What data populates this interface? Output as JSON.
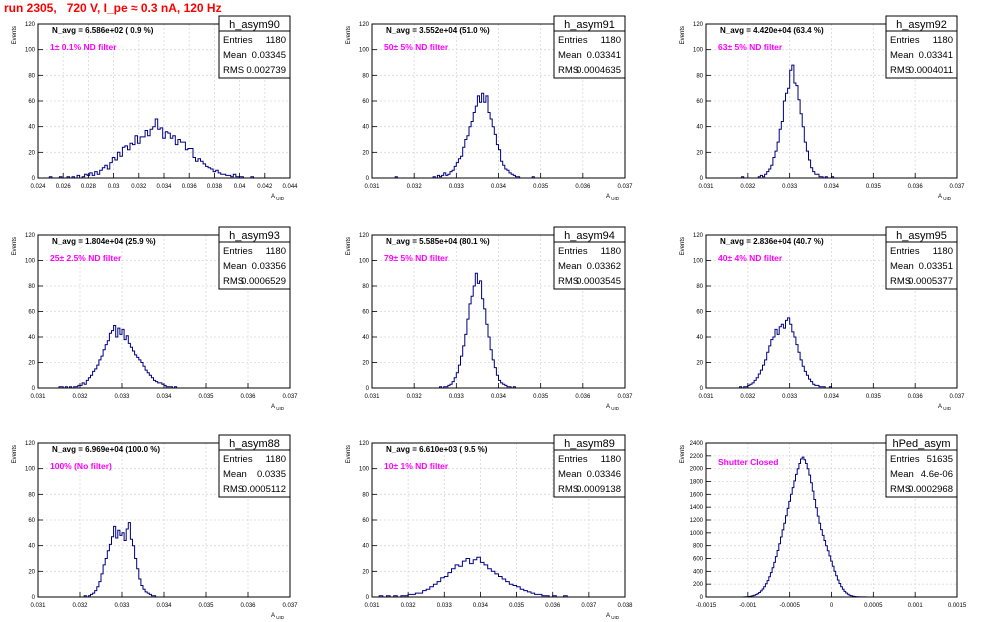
{
  "page": {
    "run_title": "run 2305,   720 V, I_pe ≈ 0.3 nA, 120 Hz"
  },
  "colors": {
    "annotation": "#ff00ff",
    "title": "#ff0000",
    "hist": "#000080",
    "grid": "#d9d9d9"
  },
  "chart_data": [
    {
      "type": "histogram",
      "name": "h_asym90",
      "navg": "N_avg = 6.586e+02 ( 0.9 %)",
      "filter": "1± 0.1% ND filter",
      "stats": {
        "entries": "1180",
        "mean": "0.03345",
        "rms": "0.002739"
      },
      "ylabel": "Events",
      "xlabel": "A_{UID}",
      "xlim": [
        0.024,
        0.044
      ],
      "ylim": [
        0,
        120
      ],
      "xticks": [
        "0.024",
        "0.026",
        "0.028",
        "0.03",
        "0.032",
        "0.034",
        "0.036",
        "0.038",
        "0.04",
        "0.042",
        "0.044"
      ],
      "yticks": [
        "0",
        "20",
        "40",
        "60",
        "80",
        "100",
        "120"
      ],
      "bin_start": 0.0245,
      "bin_width": 0.0002,
      "counts": [
        0,
        0,
        1,
        0,
        0,
        0,
        1,
        0,
        0,
        1,
        0,
        1,
        0,
        2,
        0,
        1,
        3,
        2,
        4,
        2,
        5,
        3,
        6,
        8,
        10,
        7,
        12,
        16,
        14,
        20,
        17,
        24,
        25,
        22,
        27,
        26,
        33,
        27,
        32,
        32,
        37,
        33,
        38,
        40,
        46,
        38,
        39,
        31,
        36,
        35,
        31,
        33,
        26,
        30,
        28,
        28,
        22,
        23,
        23,
        16,
        13,
        15,
        13,
        11,
        9,
        8,
        7,
        5,
        6,
        4,
        3,
        3,
        2,
        2,
        1,
        3,
        1,
        1,
        1,
        0,
        0,
        0,
        1,
        0,
        0,
        0,
        0,
        0,
        0,
        0
      ]
    },
    {
      "type": "histogram",
      "name": "h_asym91",
      "navg": "N_avg = 3.552e+04 (51.0 %)",
      "filter": "50± 5% ND filter",
      "stats": {
        "entries": "1180",
        "mean": "0.03341",
        "rms": "0.0004635"
      },
      "ylabel": "Events",
      "xlabel": "A_{UID}",
      "xlim": [
        0.031,
        0.037
      ],
      "ylim": [
        0,
        120
      ],
      "xticks": [
        "0.031",
        "0.032",
        "0.033",
        "0.034",
        "0.035",
        "0.036",
        "0.037"
      ],
      "yticks": [
        "0",
        "20",
        "40",
        "60",
        "80",
        "100",
        "120"
      ],
      "bin_start": 0.03155,
      "bin_width": 5e-05,
      "counts": [
        1,
        0,
        0,
        0,
        0,
        0,
        0,
        0,
        0,
        0,
        0,
        0,
        0,
        0,
        0,
        0,
        0,
        0,
        1,
        0,
        2,
        1,
        2,
        4,
        2,
        3,
        5,
        6,
        9,
        12,
        15,
        17,
        24,
        30,
        33,
        40,
        44,
        51,
        56,
        64,
        59,
        66,
        59,
        64,
        51,
        46,
        40,
        34,
        26,
        22,
        13,
        10,
        7,
        6,
        4,
        3,
        2,
        1,
        1,
        0,
        0,
        0,
        0,
        0,
        0,
        1,
        0,
        0,
        0,
        0
      ]
    },
    {
      "type": "histogram",
      "name": "h_asym92",
      "navg": "N_avg = 4.420e+04 (63.4 %)",
      "filter": "63± 5% ND filter",
      "stats": {
        "entries": "1180",
        "mean": "0.03341",
        "rms": "0.0004011"
      },
      "ylabel": "Events",
      "xlabel": "A_{UID}",
      "xlim": [
        0.031,
        0.037
      ],
      "ylim": [
        0,
        120
      ],
      "xticks": [
        "0.031",
        "0.032",
        "0.033",
        "0.034",
        "0.035",
        "0.036",
        "0.037"
      ],
      "yticks": [
        "0",
        "20",
        "40",
        "60",
        "80",
        "100",
        "120"
      ],
      "bin_start": 0.03185,
      "bin_width": 5e-05,
      "counts": [
        1,
        0,
        0,
        0,
        0,
        0,
        0,
        0,
        1,
        2,
        1,
        3,
        5,
        7,
        10,
        16,
        21,
        28,
        38,
        44,
        60,
        66,
        70,
        84,
        88,
        74,
        72,
        61,
        50,
        40,
        28,
        21,
        14,
        8,
        5,
        3,
        3,
        1,
        1,
        0,
        1,
        0,
        0,
        1
      ]
    },
    {
      "type": "histogram",
      "name": "h_asym93",
      "navg": "N_avg = 1.804e+04 (25.9 %)",
      "filter": "25± 2.5% ND filter",
      "stats": {
        "entries": "1180",
        "mean": "0.03356",
        "rms": "0.0006529"
      },
      "ylabel": "Events",
      "xlabel": "A_{UID}",
      "xlim": [
        0.031,
        0.037
      ],
      "ylim": [
        0,
        120
      ],
      "xticks": [
        "0.031",
        "0.032",
        "0.033",
        "0.034",
        "0.035",
        "0.036",
        "0.037"
      ],
      "yticks": [
        "0",
        "20",
        "40",
        "60",
        "80",
        "100",
        "120"
      ],
      "bin_start": 0.0315,
      "bin_width": 5e-05,
      "counts": [
        1,
        1,
        0,
        1,
        0,
        1,
        0,
        1,
        1,
        2,
        2,
        4,
        3,
        6,
        8,
        10,
        13,
        15,
        18,
        22,
        25,
        30,
        34,
        37,
        43,
        45,
        49,
        40,
        47,
        42,
        46,
        38,
        41,
        35,
        32,
        29,
        26,
        24,
        22,
        20,
        17,
        14,
        12,
        10,
        8,
        6,
        5,
        4,
        4,
        3,
        2,
        1,
        1,
        1,
        0,
        1
      ]
    },
    {
      "type": "histogram",
      "name": "h_asym94",
      "navg": "N_avg = 5.585e+04 (80.1 %)",
      "filter": "79± 5% ND filter",
      "stats": {
        "entries": "1180",
        "mean": "0.03362",
        "rms": "0.0003545"
      },
      "ylabel": "Events",
      "xlabel": "A_{UID}",
      "xlim": [
        0.031,
        0.037
      ],
      "ylim": [
        0,
        120
      ],
      "xticks": [
        "0.031",
        "0.032",
        "0.033",
        "0.034",
        "0.035",
        "0.036",
        "0.037"
      ],
      "yticks": [
        "0",
        "20",
        "40",
        "60",
        "80",
        "100",
        "120"
      ],
      "bin_start": 0.0326,
      "bin_width": 5e-05,
      "counts": [
        1,
        0,
        1,
        1,
        2,
        3,
        5,
        8,
        12,
        18,
        25,
        33,
        42,
        54,
        66,
        72,
        80,
        90,
        82,
        84,
        70,
        62,
        50,
        40,
        30,
        22,
        16,
        10,
        6,
        4,
        3,
        2,
        1,
        1,
        0,
        1
      ]
    },
    {
      "type": "histogram",
      "name": "h_asym95",
      "navg": "N_avg = 2.836e+04 (40.7 %)",
      "filter": "40± 4% ND filter",
      "stats": {
        "entries": "1180",
        "mean": "0.03351",
        "rms": "0.0005377"
      },
      "ylabel": "Events",
      "xlabel": "A_{UID}",
      "xlim": [
        0.031,
        0.037
      ],
      "ylim": [
        0,
        120
      ],
      "xticks": [
        "0.031",
        "0.032",
        "0.033",
        "0.034",
        "0.035",
        "0.036",
        "0.037"
      ],
      "yticks": [
        "0",
        "20",
        "40",
        "60",
        "80",
        "100",
        "120"
      ],
      "bin_start": 0.0318,
      "bin_width": 5e-05,
      "counts": [
        1,
        0,
        1,
        1,
        2,
        3,
        4,
        6,
        8,
        11,
        14,
        18,
        22,
        28,
        33,
        38,
        40,
        46,
        42,
        48,
        50,
        47,
        53,
        55,
        50,
        44,
        40,
        34,
        28,
        22,
        17,
        13,
        10,
        7,
        5,
        3,
        2,
        2,
        1,
        1,
        1,
        0,
        0,
        1
      ]
    },
    {
      "type": "histogram",
      "name": "h_asym88",
      "navg": "N_avg = 6.969e+04 (100.0 %)",
      "filter": "100% (No filter)",
      "stats": {
        "entries": "1180",
        "mean": "0.0335",
        "rms": "0.0005112"
      },
      "ylabel": "Events",
      "xlabel": "A_{UID}",
      "xlim": [
        0.031,
        0.037
      ],
      "ylim": [
        0,
        120
      ],
      "xticks": [
        "0.031",
        "0.032",
        "0.033",
        "0.034",
        "0.035",
        "0.036",
        "0.037"
      ],
      "yticks": [
        "0",
        "20",
        "40",
        "60",
        "80",
        "100",
        "120"
      ],
      "bin_start": 0.0321,
      "bin_width": 5e-05,
      "counts": [
        1,
        0,
        1,
        2,
        3,
        5,
        8,
        12,
        18,
        25,
        30,
        36,
        41,
        47,
        55,
        46,
        52,
        48,
        50,
        44,
        53,
        58,
        45,
        40,
        30,
        22,
        14,
        9,
        6,
        4,
        3,
        2,
        1,
        1
      ]
    },
    {
      "type": "histogram",
      "name": "h_asym89",
      "navg": "N_avg = 6.610e+03 ( 9.5 %)",
      "filter": "10± 1% ND filter",
      "stats": {
        "entries": "1180",
        "mean": "0.03346",
        "rms": "0.0009138"
      },
      "ylabel": "Events",
      "xlabel": "A_{UID}",
      "xlim": [
        0.031,
        0.038
      ],
      "ylim": [
        0,
        120
      ],
      "xticks": [
        "0.031",
        "0.032",
        "0.033",
        "0.034",
        "0.035",
        "0.036",
        "0.037",
        "0.038"
      ],
      "yticks": [
        "0",
        "20",
        "40",
        "60",
        "80",
        "100",
        "120"
      ],
      "bin_start": 0.0312,
      "bin_width": 0.0001,
      "counts": [
        1,
        0,
        1,
        0,
        1,
        0,
        1,
        1,
        2,
        2,
        3,
        3,
        5,
        6,
        8,
        10,
        12,
        15,
        16,
        19,
        22,
        25,
        24,
        28,
        30,
        26,
        29,
        31,
        27,
        25,
        22,
        20,
        18,
        16,
        14,
        12,
        10,
        9,
        8,
        6,
        5,
        4,
        3,
        2,
        2,
        1,
        1,
        0,
        1,
        0,
        0,
        1
      ]
    },
    {
      "type": "histogram",
      "name": "hPed_asym",
      "navg": "",
      "filter": "Shutter Closed",
      "stats": {
        "entries": "51635",
        "mean": "4.6e-06",
        "rms": "0.0002968"
      },
      "ylabel": "Events",
      "xlabel": "",
      "xlim": [
        -0.0015,
        0.0015
      ],
      "ylim": [
        0,
        2400
      ],
      "xticks": [
        "-0.0015",
        "-0.001",
        "-0.0005",
        "0",
        "0.0005",
        "0.001",
        "0.0015"
      ],
      "yticks": [
        "0",
        "200",
        "400",
        "600",
        "800",
        "1000",
        "1200",
        "1400",
        "1600",
        "1800",
        "2000",
        "2200",
        "2400"
      ],
      "bin_start": -0.00105,
      "bin_width": 2e-05,
      "counts": [
        2,
        3,
        5,
        8,
        12,
        18,
        26,
        38,
        52,
        70,
        95,
        125,
        160,
        205,
        255,
        315,
        380,
        455,
        540,
        630,
        725,
        830,
        935,
        1045,
        1150,
        1265,
        1380,
        1490,
        1600,
        1705,
        1810,
        1910,
        2000,
        2080,
        2150,
        2180,
        2140,
        2080,
        2000,
        1900,
        1780,
        1650,
        1520,
        1390,
        1260,
        1150,
        1050,
        960,
        880,
        800,
        720,
        640,
        560,
        480,
        400,
        330,
        265,
        210,
        160,
        120,
        88,
        62,
        42,
        28,
        18,
        12,
        8,
        5,
        3,
        2,
        1,
        1,
        1
      ]
    }
  ]
}
